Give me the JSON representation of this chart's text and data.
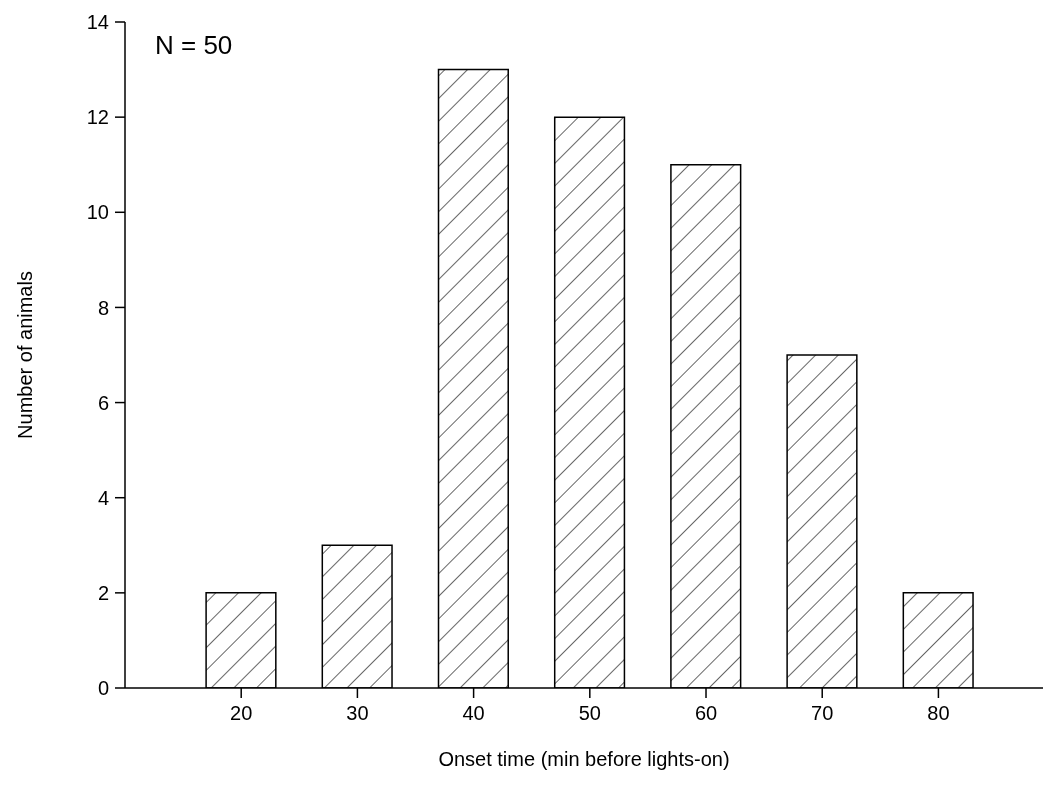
{
  "chart_data": {
    "type": "bar",
    "xlabel": "Onset time (min before lights-on)",
    "ylabel": "Number of animals",
    "x": [
      20,
      30,
      40,
      50,
      60,
      70,
      80
    ],
    "values": [
      2,
      3,
      13,
      12,
      11,
      7,
      2
    ],
    "color": "#000000",
    "xlim": [
      10,
      89
    ],
    "xticks": [
      20,
      30,
      40,
      50,
      60,
      70,
      80
    ],
    "ylim": [
      0,
      14
    ],
    "yticks": [
      0,
      2,
      4,
      6,
      8,
      10,
      12,
      14
    ],
    "grid": false,
    "annotations": [
      "N = 50"
    ]
  }
}
